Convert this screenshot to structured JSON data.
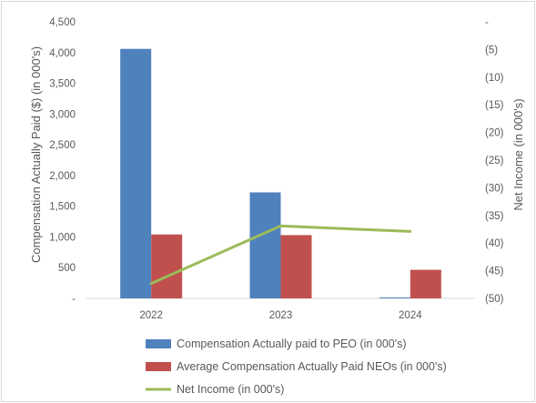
{
  "chart_data": {
    "type": "bar",
    "title": "",
    "categories": [
      "2022",
      "2023",
      "2024"
    ],
    "ylabel": "Compensation Actually Paid ($) (in 000's)",
    "y2label": "Net Income (in 000's)",
    "ylim": [
      0,
      4500
    ],
    "y2lim": [
      -50,
      0
    ],
    "yticks": [
      "-",
      "500",
      "1,000",
      "1,500",
      "2,000",
      "2,500",
      "3,000",
      "3,500",
      "4,000",
      "4,500"
    ],
    "y2ticks": [
      "-",
      "(5)",
      "(10)",
      "(15)",
      "(20)",
      "(25)",
      "(30)",
      "(35)",
      "(40)",
      "(45)",
      "(50)"
    ],
    "grid": false,
    "legend_position": "bottom",
    "series": [
      {
        "name": "Compensation Actually paid to PEO (in 000's)",
        "type": "bar",
        "axis": "left",
        "color": "#4f81bd",
        "values": [
          4060,
          1725,
          15
        ]
      },
      {
        "name": "Average Compensation Actually Paid NEOs (in 000's)",
        "type": "bar",
        "axis": "left",
        "color": "#c0504d",
        "values": [
          1040,
          1030,
          465
        ]
      },
      {
        "name": "Net Income (in 000's)",
        "type": "line",
        "axis": "right",
        "color": "#9bbb59",
        "values": [
          -47.3,
          -36.9,
          -37.9
        ]
      }
    ]
  }
}
